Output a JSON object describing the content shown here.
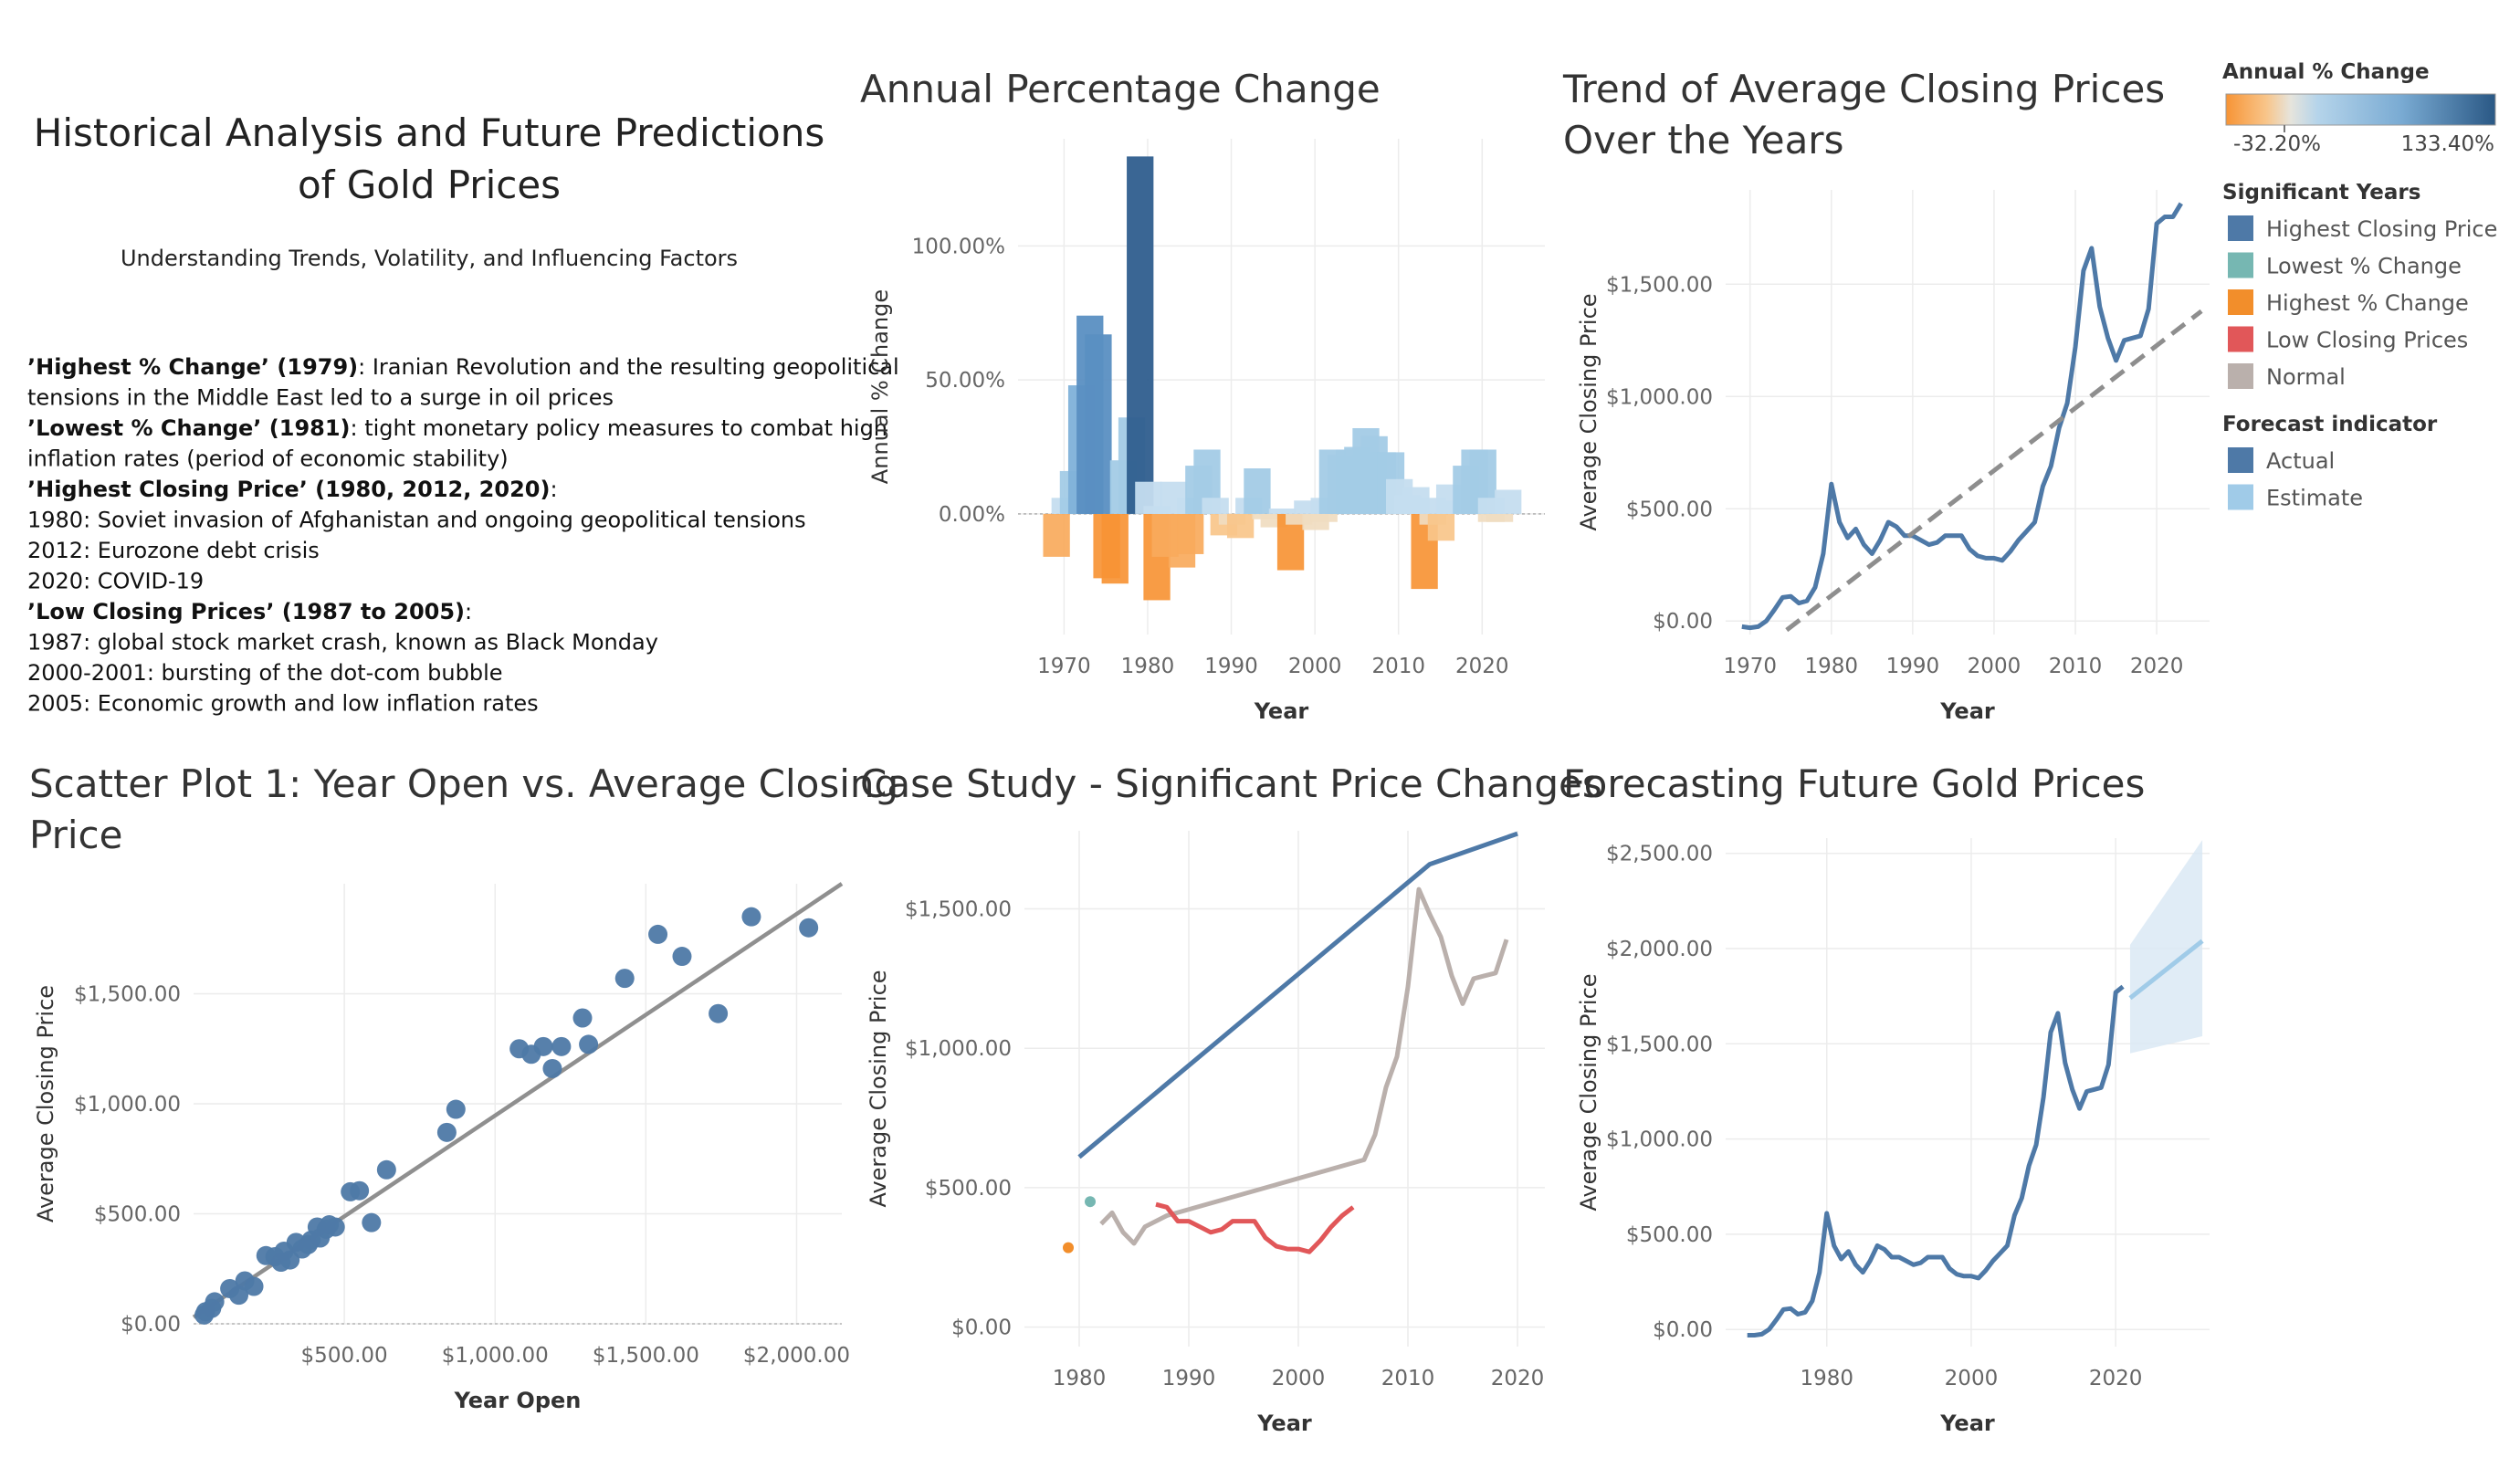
{
  "text_panel": {
    "title_line1": "Historical Analysis and Future Predictions",
    "title_line2": "of Gold Prices",
    "subtitle": "Understanding Trends, Volatility, and Influencing Factors",
    "lines": [
      {
        "bold": "’Highest % Change’ (1979)",
        "rest": ": Iranian Revolution and the resulting geopolitical"
      },
      {
        "bold": "",
        "rest": "tensions in the Middle East led to a surge in oil prices"
      },
      {
        "bold": "’Lowest % Change’ (1981)",
        "rest": ": tight monetary policy measures to combat high"
      },
      {
        "bold": "",
        "rest": "inflation rates (period of economic stability)"
      },
      {
        "bold": "’Highest Closing Price’ (1980, 2012, 2020)",
        "rest": ":"
      },
      {
        "bold": "",
        "rest": "1980: Soviet invasion of Afghanistan and ongoing geopolitical tensions"
      },
      {
        "bold": "",
        "rest": "2012: Eurozone debt crisis"
      },
      {
        "bold": "",
        "rest": "2020: COVID-19"
      },
      {
        "bold": "’Low Closing Prices’ (1987 to 2005)",
        "rest": ":"
      },
      {
        "bold": "",
        "rest": "1987: global stock market crash, known as Black Monday"
      },
      {
        "bold": "",
        "rest": "2000-2001: bursting of the dot-com bubble"
      },
      {
        "bold": "",
        "rest": "2005: Economic growth and low inflation rates"
      }
    ]
  },
  "legend": {
    "pct_title": "Annual % Change",
    "pct_min": "-32.20%",
    "pct_max": "133.40%",
    "sig_title": "Significant Years",
    "sig_items": [
      {
        "label": "Highest Closing Price",
        "color": "#4e79a7"
      },
      {
        "label": "Lowest % Change",
        "color": "#76b7b2"
      },
      {
        "label": "Highest % Change",
        "color": "#f28e2b"
      },
      {
        "label": "Low Closing Prices",
        "color": "#e15759"
      },
      {
        "label": "Normal",
        "color": "#bab0ac"
      }
    ],
    "fc_title": "Forecast indicator",
    "fc_items": [
      {
        "label": "Actual",
        "color": "#4e79a7"
      },
      {
        "label": "Estimate",
        "color": "#a0cbe8"
      }
    ]
  },
  "colors": {
    "line": "#4e79a7",
    "estimate": "#a0cbe8",
    "trend": "#999999",
    "pos_scale": [
      "#c5ddef",
      "#a3cbe6",
      "#7fb1d9",
      "#5a8fc2",
      "#2f5e8e"
    ],
    "neg_scale": [
      "#f0dcc0",
      "#f8c58a",
      "#f9aa5c",
      "#f79435"
    ]
  },
  "chart_data": [
    {
      "id": "annual_pct",
      "type": "bar",
      "title": "Annual Percentage Change",
      "xlabel": "Year",
      "ylabel": "Annual % Change",
      "xlim": [
        1964.5,
        2027.5
      ],
      "ylim": [
        -45,
        140
      ],
      "xticks": [
        1970,
        1980,
        1990,
        2000,
        2010,
        2020
      ],
      "yticks": [
        {
          "v": 0,
          "label": "0.00%"
        },
        {
          "v": 50,
          "label": "50.00%"
        },
        {
          "v": 100,
          "label": "100.00%"
        }
      ],
      "pos_years": [
        1970,
        1971,
        1972,
        1973,
        1974,
        1977,
        1978,
        1979,
        1980,
        1981,
        1983,
        1985,
        1986,
        1987,
        1988,
        1992,
        1993,
        1996,
        1999,
        2001,
        2002,
        2003,
        2004,
        2005,
        2006,
        2007,
        2008,
        2009,
        2010,
        2011,
        2012,
        2014,
        2016,
        2017,
        2018,
        2019,
        2020,
        2021,
        2023
      ],
      "pos_values": [
        6,
        16,
        48,
        74,
        67,
        20,
        36,
        133.4,
        12,
        3,
        12,
        6,
        18,
        24,
        6,
        6,
        17,
        2,
        5,
        6,
        24,
        22,
        24,
        25,
        32,
        29,
        23,
        23,
        13,
        7,
        10,
        6,
        11,
        5,
        18,
        24,
        24,
        6,
        9
      ],
      "neg_years": [
        1969,
        1975,
        1976,
        1981,
        1982,
        1984,
        1985,
        1989,
        1990,
        1991,
        1994,
        1995,
        1997,
        1998,
        2000,
        2001,
        2013,
        2014,
        2015,
        2021,
        2022
      ],
      "neg_values": [
        -16,
        -24,
        -26,
        -32.2,
        -16,
        -20,
        -15,
        -8,
        -4,
        -9,
        -2,
        -5,
        -21,
        -4,
        -6,
        -3,
        -28,
        -4,
        -10,
        -3,
        -3
      ]
    },
    {
      "id": "trend",
      "type": "line",
      "title": "Trend of Average Closing Prices",
      "title2": "Over the Years",
      "xlabel": "Year",
      "ylabel": "Average Closing Price",
      "xlim": [
        1967,
        2026.5
      ],
      "ylim": [
        -60,
        1920
      ],
      "xticks": [
        1970,
        1980,
        1990,
        2000,
        2010,
        2020
      ],
      "yticks": [
        {
          "v": 0,
          "label": "$0.00"
        },
        {
          "v": 500,
          "label": "$500.00"
        },
        {
          "v": 1000,
          "label": "$1,000.00"
        },
        {
          "v": 1500,
          "label": "$1,500.00"
        }
      ],
      "trendline": [
        [
          1974.5,
          -40
        ],
        [
          2025.5,
          1380
        ]
      ],
      "x": [
        1969,
        1970,
        1971,
        1972,
        1973,
        1974,
        1975,
        1976,
        1977,
        1978,
        1979,
        1980,
        1981,
        1982,
        1983,
        1984,
        1985,
        1986,
        1987,
        1988,
        1989,
        1990,
        1991,
        1992,
        1993,
        1994,
        1995,
        1996,
        1997,
        1998,
        1999,
        2000,
        2001,
        2002,
        2003,
        2004,
        2005,
        2006,
        2007,
        2008,
        2009,
        2010,
        2011,
        2012,
        2013,
        2014,
        2015,
        2016,
        2017,
        2018,
        2019,
        2020,
        2021,
        2022,
        2023
      ],
      "y": [
        -25,
        -30,
        -25,
        0,
        50,
        105,
        110,
        80,
        90,
        150,
        300,
        610,
        440,
        370,
        410,
        340,
        300,
        360,
        440,
        420,
        380,
        380,
        360,
        340,
        350,
        380,
        380,
        380,
        320,
        290,
        280,
        280,
        270,
        310,
        360,
        400,
        440,
        600,
        690,
        860,
        970,
        1220,
        1560,
        1660,
        1400,
        1260,
        1160,
        1250,
        1260,
        1270,
        1390,
        1770,
        1800,
        1800,
        1860
      ]
    },
    {
      "id": "scatter",
      "type": "scatter",
      "title": "Scatter Plot 1: Year Open vs. Average Closing",
      "title2": "Price",
      "xlabel": "Year Open",
      "ylabel": "Average Closing Price",
      "xlim": [
        0,
        2150
      ],
      "ylim": [
        0,
        2000
      ],
      "xticks": [
        {
          "v": 500,
          "label": "$500.00"
        },
        {
          "v": 1000,
          "label": "$1,000.00"
        },
        {
          "v": 1500,
          "label": "$1,500.00"
        },
        {
          "v": 2000,
          "label": "$2,000.00"
        }
      ],
      "yticks": [
        {
          "v": 0,
          "label": "$0.00"
        },
        {
          "v": 500,
          "label": "$500.00"
        },
        {
          "v": 1000,
          "label": "$1,000.00"
        },
        {
          "v": 1500,
          "label": "$1,500.00"
        }
      ],
      "trendline": [
        [
          0,
          30
        ],
        [
          2150,
          2000
        ]
      ],
      "points": [
        [
          35,
          40
        ],
        [
          40,
          55
        ],
        [
          60,
          70
        ],
        [
          70,
          100
        ],
        [
          120,
          160
        ],
        [
          150,
          130
        ],
        [
          170,
          195
        ],
        [
          200,
          170
        ],
        [
          240,
          310
        ],
        [
          270,
          305
        ],
        [
          290,
          280
        ],
        [
          300,
          330
        ],
        [
          320,
          290
        ],
        [
          340,
          370
        ],
        [
          360,
          340
        ],
        [
          380,
          360
        ],
        [
          390,
          380
        ],
        [
          410,
          440
        ],
        [
          420,
          390
        ],
        [
          440,
          430
        ],
        [
          450,
          450
        ],
        [
          470,
          440
        ],
        [
          520,
          600
        ],
        [
          550,
          605
        ],
        [
          590,
          460
        ],
        [
          640,
          700
        ],
        [
          840,
          870
        ],
        [
          870,
          975
        ],
        [
          1080,
          1250
        ],
        [
          1120,
          1225
        ],
        [
          1160,
          1260
        ],
        [
          1190,
          1160
        ],
        [
          1220,
          1260
        ],
        [
          1290,
          1390
        ],
        [
          1310,
          1270
        ],
        [
          1430,
          1570
        ],
        [
          1540,
          1770
        ],
        [
          1620,
          1670
        ],
        [
          1740,
          1410
        ],
        [
          1850,
          1850
        ],
        [
          2040,
          1800
        ]
      ]
    },
    {
      "id": "case_study",
      "type": "line",
      "title": "Case Study - Significant Price Changes",
      "xlabel": "Year",
      "ylabel": "Average Closing Price",
      "xlim": [
        1975,
        2022.5
      ],
      "ylim": [
        -70,
        1780
      ],
      "xticks": [
        1980,
        1990,
        2000,
        2010,
        2020
      ],
      "yticks": [
        {
          "v": 0,
          "label": "$0.00"
        },
        {
          "v": 500,
          "label": "$500.00"
        },
        {
          "v": 1000,
          "label": "$1,000.00"
        },
        {
          "v": 1500,
          "label": "$1,500.00"
        }
      ],
      "series": [
        {
          "name": "Highest Closing Price",
          "color": "#4e79a7",
          "x": [
            1980,
            2012,
            2020
          ],
          "y": [
            610,
            1660,
            1770
          ]
        },
        {
          "name": "Normal",
          "color": "#bab0ac",
          "x": [
            1982,
            1983,
            1984,
            1985,
            1986,
            1988,
            2006,
            2007,
            2008,
            2009,
            2010,
            2011,
            2012,
            2013,
            2014,
            2015,
            2016,
            2017,
            2018,
            2019
          ],
          "y": [
            370,
            410,
            340,
            300,
            360,
            400,
            600,
            690,
            860,
            970,
            1220,
            1570,
            1480,
            1400,
            1260,
            1160,
            1250,
            1260,
            1270,
            1390
          ]
        },
        {
          "name": "Low Closing Prices",
          "color": "#e15759",
          "x": [
            1987,
            1988,
            1989,
            1990,
            1991,
            1992,
            1993,
            1994,
            1995,
            1996,
            1997,
            1998,
            1999,
            2000,
            2001,
            2002,
            2003,
            2004,
            2005
          ],
          "y": [
            440,
            430,
            380,
            380,
            360,
            340,
            350,
            380,
            380,
            380,
            320,
            290,
            280,
            280,
            270,
            310,
            360,
            400,
            430
          ]
        }
      ],
      "points": [
        {
          "name": "Highest % Change",
          "color": "#f28e2b",
          "x": 1979,
          "y": 285
        },
        {
          "name": "Lowest % Change",
          "color": "#76b7b2",
          "x": 1981,
          "y": 450
        }
      ]
    },
    {
      "id": "forecast",
      "type": "line",
      "title": "Forecasting Future Gold Prices",
      "xlabel": "Year",
      "ylabel": "Average Closing Price",
      "xlim": [
        1966,
        2033
      ],
      "ylim": [
        -90,
        2580
      ],
      "xticks": [
        1980,
        2000,
        2020
      ],
      "yticks": [
        {
          "v": 0,
          "label": "$0.00"
        },
        {
          "v": 500,
          "label": "$500.00"
        },
        {
          "v": 1000,
          "label": "$1,000.00"
        },
        {
          "v": 1500,
          "label": "$1,500.00"
        },
        {
          "v": 2000,
          "label": "$2,000.00"
        },
        {
          "v": 2500,
          "label": "$2,500.00"
        }
      ],
      "actual_x": [
        1969,
        1970,
        1971,
        1972,
        1973,
        1974,
        1975,
        1976,
        1977,
        1978,
        1979,
        1980,
        1981,
        1982,
        1983,
        1984,
        1985,
        1986,
        1987,
        1988,
        1989,
        1990,
        1991,
        1992,
        1993,
        1994,
        1995,
        1996,
        1997,
        1998,
        1999,
        2000,
        2001,
        2002,
        2003,
        2004,
        2005,
        2006,
        2007,
        2008,
        2009,
        2010,
        2011,
        2012,
        2013,
        2014,
        2015,
        2016,
        2017,
        2018,
        2019,
        2020,
        2021
      ],
      "actual_y": [
        -30,
        -30,
        -25,
        0,
        50,
        105,
        110,
        80,
        90,
        150,
        300,
        610,
        440,
        370,
        410,
        340,
        300,
        360,
        440,
        420,
        380,
        380,
        360,
        340,
        350,
        380,
        380,
        380,
        320,
        290,
        280,
        280,
        270,
        310,
        360,
        400,
        440,
        600,
        690,
        860,
        970,
        1220,
        1560,
        1660,
        1400,
        1260,
        1160,
        1250,
        1260,
        1270,
        1390,
        1770,
        1800
      ],
      "estimate_x": [
        2022,
        2032
      ],
      "estimate_y": [
        1740,
        2040
      ],
      "band_upper": [
        2020,
        2570
      ],
      "band_lower": [
        1450,
        1540
      ]
    }
  ]
}
